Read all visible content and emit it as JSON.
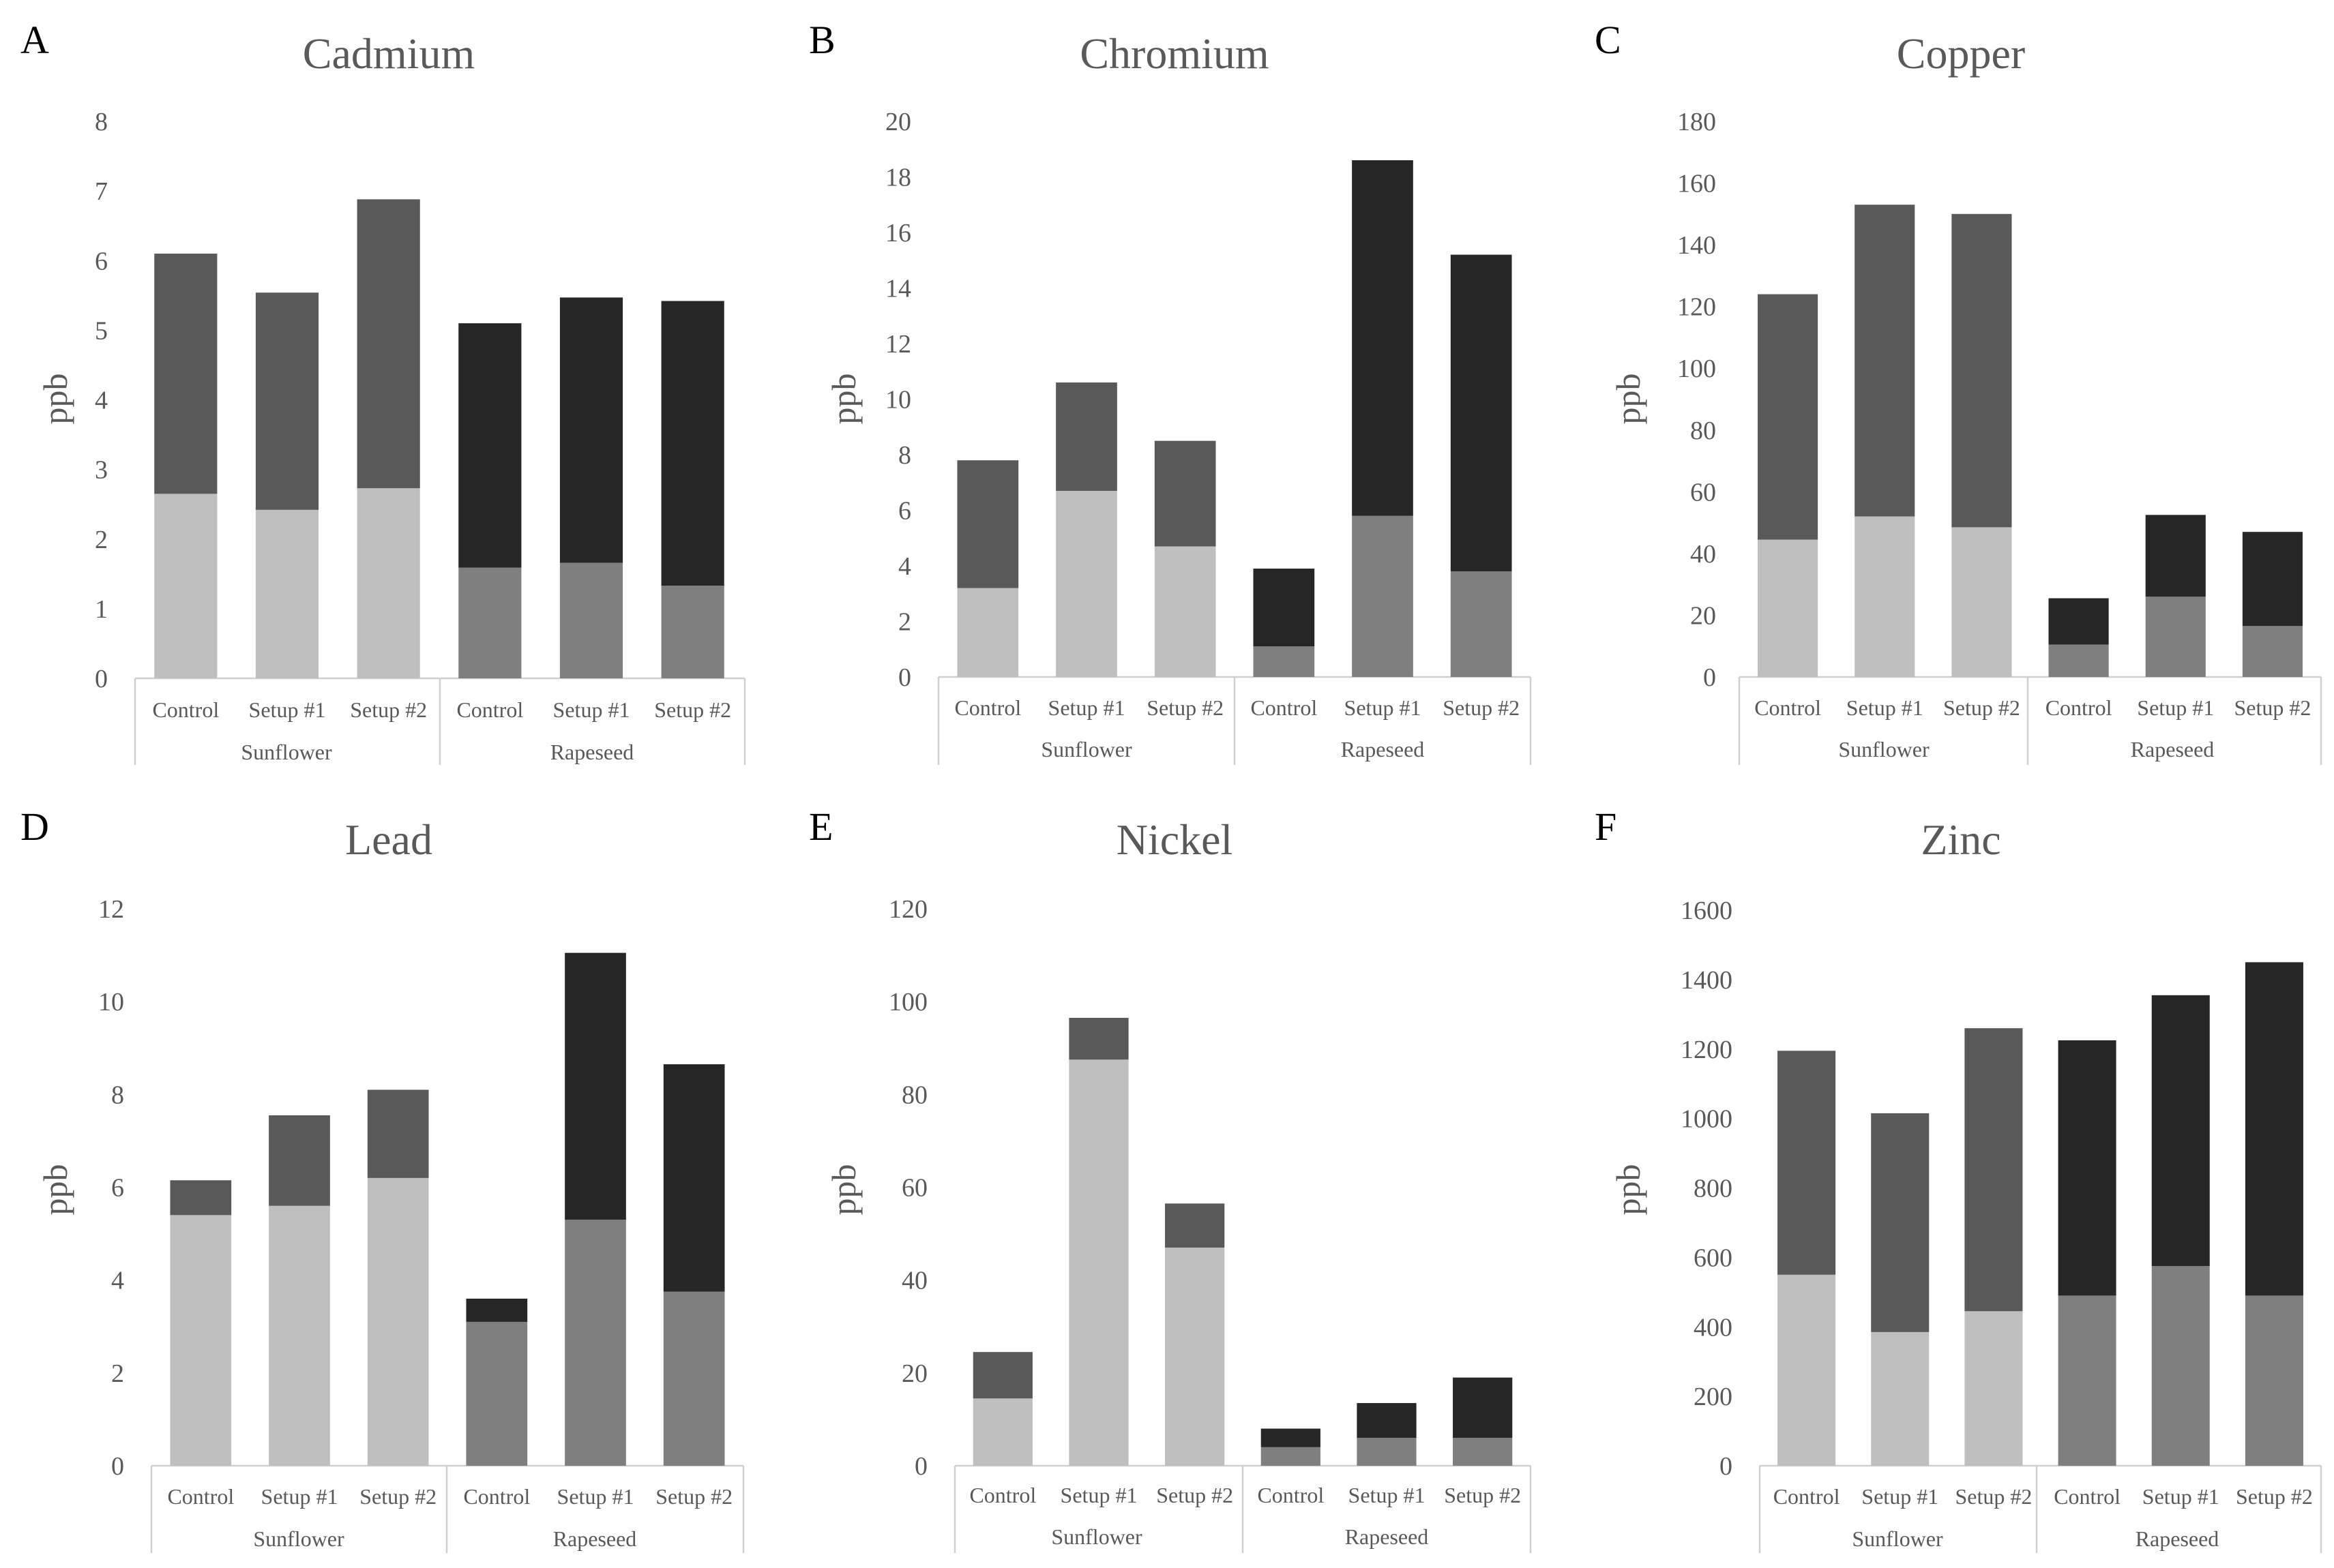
{
  "chart_data": [
    {
      "type": "bar",
      "stacked": true,
      "panel": "A",
      "title": "Cadmium",
      "xlabel": "",
      "ylabel": "ppb",
      "ylim": [
        0,
        8
      ],
      "yticks": [
        "0",
        "1",
        "2",
        "3",
        "4",
        "5",
        "6",
        "7",
        "8"
      ],
      "groups": [
        "Sunflower",
        "Rapeseed"
      ],
      "categories": [
        "Control",
        "Setup #1",
        "Setup #2",
        "Control",
        "Setup #1",
        "Setup #2"
      ],
      "series": [
        {
          "name": "bottom",
          "values": [
            2.65,
            2.42,
            2.73,
            1.59,
            1.66,
            1.33
          ]
        },
        {
          "name": "top",
          "values": [
            3.45,
            3.12,
            4.15,
            3.51,
            3.81,
            4.09
          ]
        }
      ]
    },
    {
      "type": "bar",
      "stacked": true,
      "panel": "B",
      "title": "Chromium",
      "xlabel": "",
      "ylabel": "ppb",
      "ylim": [
        0,
        20
      ],
      "yticks": [
        "0",
        "2",
        "4",
        "6",
        "8",
        "10",
        "12",
        "14",
        "16",
        "18",
        "20"
      ],
      "groups": [
        "Sunflower",
        "Rapeseed"
      ],
      "categories": [
        "Control",
        "Setup #1",
        "Setup #2",
        "Control",
        "Setup #1",
        "Setup #2"
      ],
      "series": [
        {
          "name": "bottom",
          "values": [
            3.2,
            6.7,
            4.7,
            1.1,
            5.8,
            3.8
          ]
        },
        {
          "name": "top",
          "values": [
            4.6,
            3.9,
            3.8,
            2.8,
            12.8,
            11.4
          ]
        }
      ]
    },
    {
      "type": "bar",
      "stacked": true,
      "panel": "C",
      "title": "Copper",
      "xlabel": "",
      "ylabel": "ppb",
      "ylim": [
        0,
        180
      ],
      "yticks": [
        "0",
        "20",
        "40",
        "60",
        "80",
        "100",
        "120",
        "140",
        "160",
        "180"
      ],
      "groups": [
        "Sunflower",
        "Rapeseed"
      ],
      "categories": [
        "Control",
        "Setup #1",
        "Setup #2",
        "Control",
        "Setup #1",
        "Setup #2"
      ],
      "series": [
        {
          "name": "bottom",
          "values": [
            44.5,
            52,
            48.5,
            10.5,
            26,
            16.5
          ]
        },
        {
          "name": "top",
          "values": [
            79.5,
            101,
            101.5,
            15,
            26.5,
            30.5
          ]
        }
      ]
    },
    {
      "type": "bar",
      "stacked": true,
      "panel": "D",
      "title": "Lead",
      "xlabel": "",
      "ylabel": "ppb",
      "ylim": [
        0,
        12
      ],
      "yticks": [
        "0",
        "2",
        "4",
        "6",
        "8",
        "10",
        "12"
      ],
      "groups": [
        "Sunflower",
        "Rapeseed"
      ],
      "categories": [
        "Control",
        "Setup #1",
        "Setup #2",
        "Control",
        "Setup #1",
        "Setup #2"
      ],
      "series": [
        {
          "name": "bottom",
          "values": [
            5.4,
            5.6,
            6.2,
            3.1,
            5.3,
            3.75
          ]
        },
        {
          "name": "top",
          "values": [
            0.75,
            1.95,
            1.9,
            0.5,
            5.75,
            4.9
          ]
        }
      ]
    },
    {
      "type": "bar",
      "stacked": true,
      "panel": "E",
      "title": "Nickel",
      "xlabel": "",
      "ylabel": "ppb",
      "ylim": [
        0,
        120
      ],
      "yticks": [
        "0",
        "20",
        "40",
        "60",
        "80",
        "100",
        "120"
      ],
      "groups": [
        "Sunflower",
        "Rapeseed"
      ],
      "categories": [
        "Control",
        "Setup #1",
        "Setup #2",
        "Control",
        "Setup #1",
        "Setup #2"
      ],
      "series": [
        {
          "name": "bottom",
          "values": [
            14.5,
            87.5,
            47,
            4,
            6,
            6
          ]
        },
        {
          "name": "top",
          "values": [
            10,
            9,
            9.5,
            4,
            7.5,
            13
          ]
        }
      ]
    },
    {
      "type": "bar",
      "stacked": true,
      "panel": "F",
      "title": "Zinc",
      "xlabel": "",
      "ylabel": "ppb",
      "ylim": [
        0,
        1600
      ],
      "yticks": [
        "0",
        "200",
        "400",
        "600",
        "800",
        "1000",
        "1200",
        "1400",
        "1600"
      ],
      "groups": [
        "Sunflower",
        "Rapeseed"
      ],
      "categories": [
        "Control",
        "Setup #1",
        "Setup #2",
        "Control",
        "Setup #1",
        "Setup #2"
      ],
      "series": [
        {
          "name": "bottom",
          "values": [
            550,
            385,
            445,
            490,
            575,
            490
          ]
        },
        {
          "name": "top",
          "values": [
            645,
            630,
            815,
            735,
            780,
            960
          ]
        }
      ]
    }
  ],
  "colors": {
    "sunflower_bottom": "#bfbfbf",
    "sunflower_top": "#595959",
    "rapeseed_bottom": "#7f7f7f",
    "rapeseed_top": "#262626"
  }
}
